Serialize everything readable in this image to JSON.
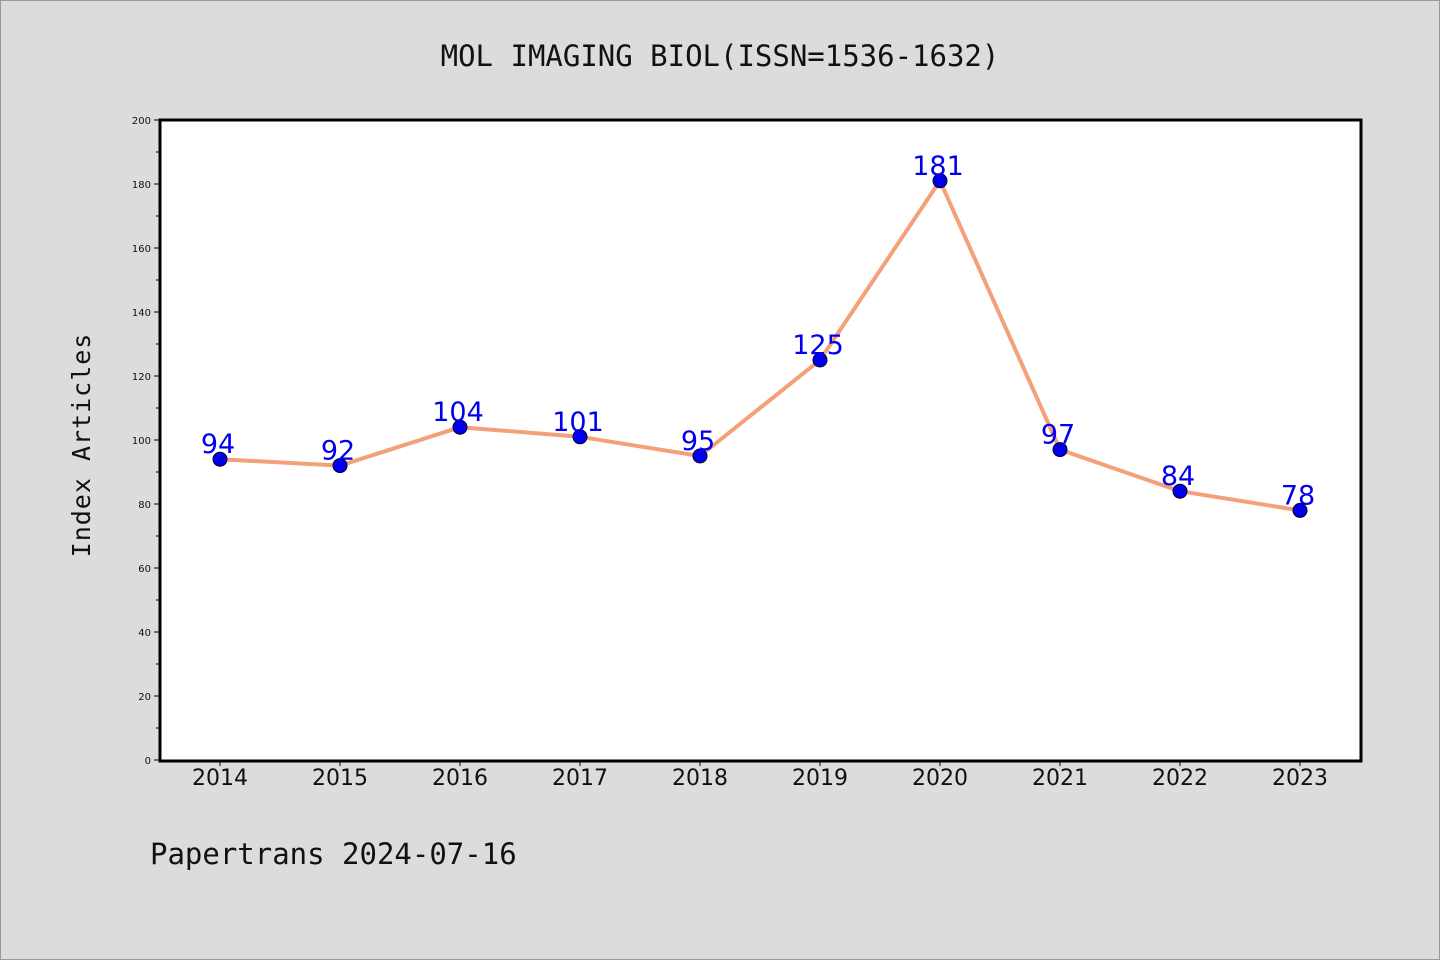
{
  "footer": {
    "text": "Papertrans 2024-07-16"
  },
  "chart_data": {
    "type": "line",
    "title": "MOL IMAGING BIOL(ISSN=1536-1632)",
    "xlabel": "",
    "ylabel": "Index Articles",
    "categories": [
      "2014",
      "2015",
      "2016",
      "2017",
      "2018",
      "2019",
      "2020",
      "2021",
      "2022",
      "2023"
    ],
    "series": [
      {
        "values": [
          94,
          92,
          104,
          101,
          95,
          125,
          181,
          97,
          84,
          78
        ]
      }
    ],
    "ylim": [
      0,
      200
    ],
    "yticks": [
      0,
      20,
      40,
      60,
      80,
      100,
      120,
      140,
      160,
      180,
      200
    ],
    "grid": false,
    "legend": "none",
    "colors": {
      "line": "#f4a07a",
      "marker": "#0000ee",
      "data_label": "#0000ee",
      "plot_background": "#ffffff",
      "figure_background": "#dcdcdc"
    }
  }
}
